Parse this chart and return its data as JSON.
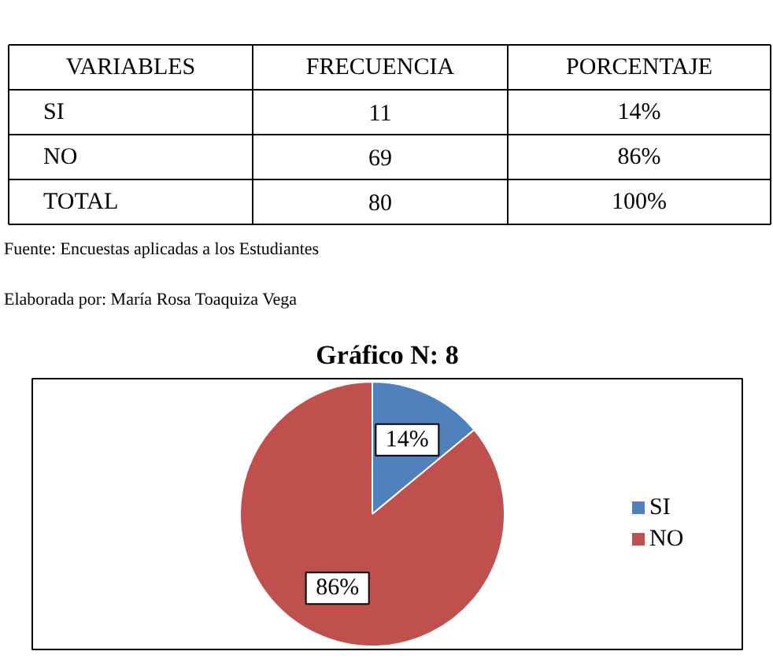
{
  "chart_data": [
    {
      "type": "other",
      "annotations": [
        "VARIABLES",
        "FRECUENCIA",
        "PORCENTAJE",
        "SI",
        "11",
        "14%",
        "NO",
        "69",
        "86%",
        "TOTAL",
        "80",
        "100%",
        "Fuente: Encuestas aplicadas a los Estudiantes",
        "Elaborada por: María Rosa Toaquiza Vega"
      ]
    },
    {
      "type": "pie",
      "title": "Gráfico N: 8",
      "categories": [
        "SI",
        "NO"
      ],
      "values": [
        14,
        86
      ],
      "colors": [
        "#4f81bd",
        "#c0504d"
      ],
      "value_labels": [
        "14%",
        "86%"
      ],
      "legend": "right"
    }
  ]
}
